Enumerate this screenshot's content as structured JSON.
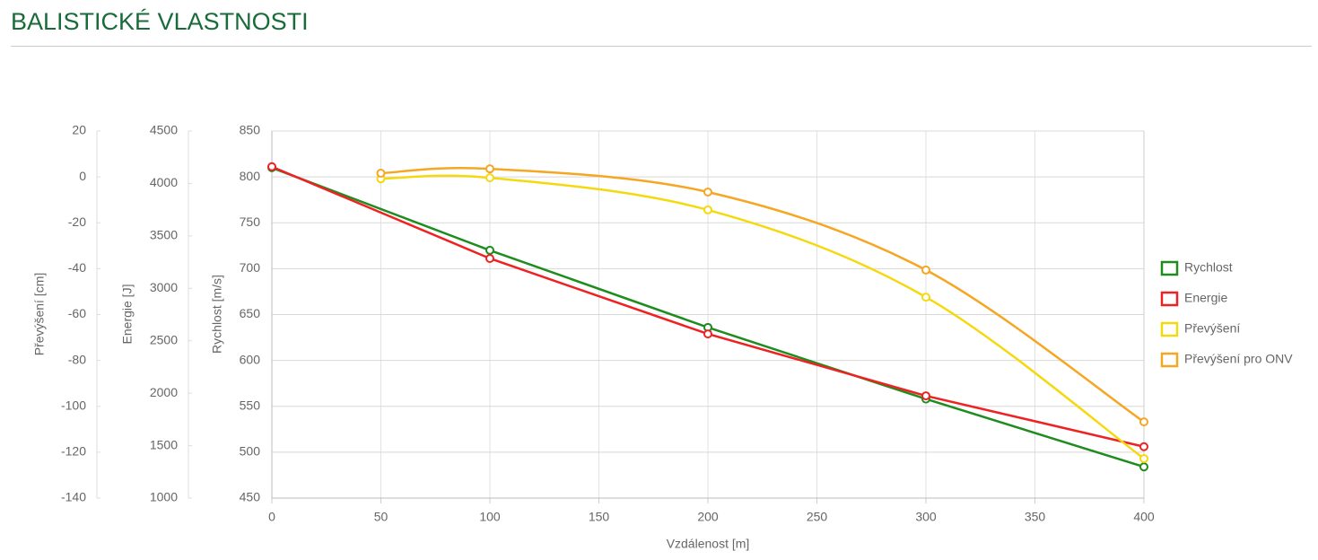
{
  "chart_data": {
    "type": "line",
    "title": "BALISTICKÉ VLASTNOSTI",
    "xlabel": "Vzdálenost [m]",
    "xlim": [
      0,
      400
    ],
    "xticks": [
      0,
      50,
      100,
      150,
      200,
      250,
      300,
      350,
      400
    ],
    "ylabel": "Rychlost [m/s]",
    "ylim": [
      450,
      850
    ],
    "yticks": [
      450,
      500,
      550,
      600,
      650,
      700,
      750,
      800,
      850
    ],
    "y2label": "Energie [J]",
    "y2lim": [
      1000,
      4500
    ],
    "y2ticks": [
      1000,
      1500,
      2000,
      2500,
      3000,
      3500,
      4000,
      4500
    ],
    "y3label": "Převýšení [cm]",
    "y3lim": [
      -140,
      20
    ],
    "y3ticks": [
      -140,
      -120,
      -100,
      -80,
      -60,
      -40,
      -20,
      0,
      20
    ],
    "grid": true,
    "legend": "right",
    "series": [
      {
        "name": "Rychlost",
        "color": "#1e8c1e",
        "axis": "y",
        "smooth": false,
        "x": [
          0,
          100,
          200,
          300,
          400
        ],
        "values": [
          810,
          720,
          636,
          558,
          484
        ]
      },
      {
        "name": "Energie",
        "color": "#ee2222",
        "axis": "y2",
        "smooth": false,
        "x": [
          0,
          100,
          200,
          300,
          400
        ],
        "values": [
          4160,
          3285,
          2565,
          1975,
          1490
        ]
      },
      {
        "name": "Převýšení",
        "color": "#f5d90f",
        "axis": "y3",
        "smooth": true,
        "x": [
          50,
          100,
          200,
          300,
          400
        ],
        "values": [
          -0.8,
          -0.4,
          -14.4,
          -52.4,
          -122.8
        ]
      },
      {
        "name": "Převýšení pro ONV",
        "color": "#f5a623",
        "axis": "y3",
        "smooth": true,
        "x": [
          50,
          100,
          200,
          300,
          400
        ],
        "values": [
          1.6,
          3.5,
          -6.6,
          -40.6,
          -106.8
        ]
      }
    ]
  }
}
